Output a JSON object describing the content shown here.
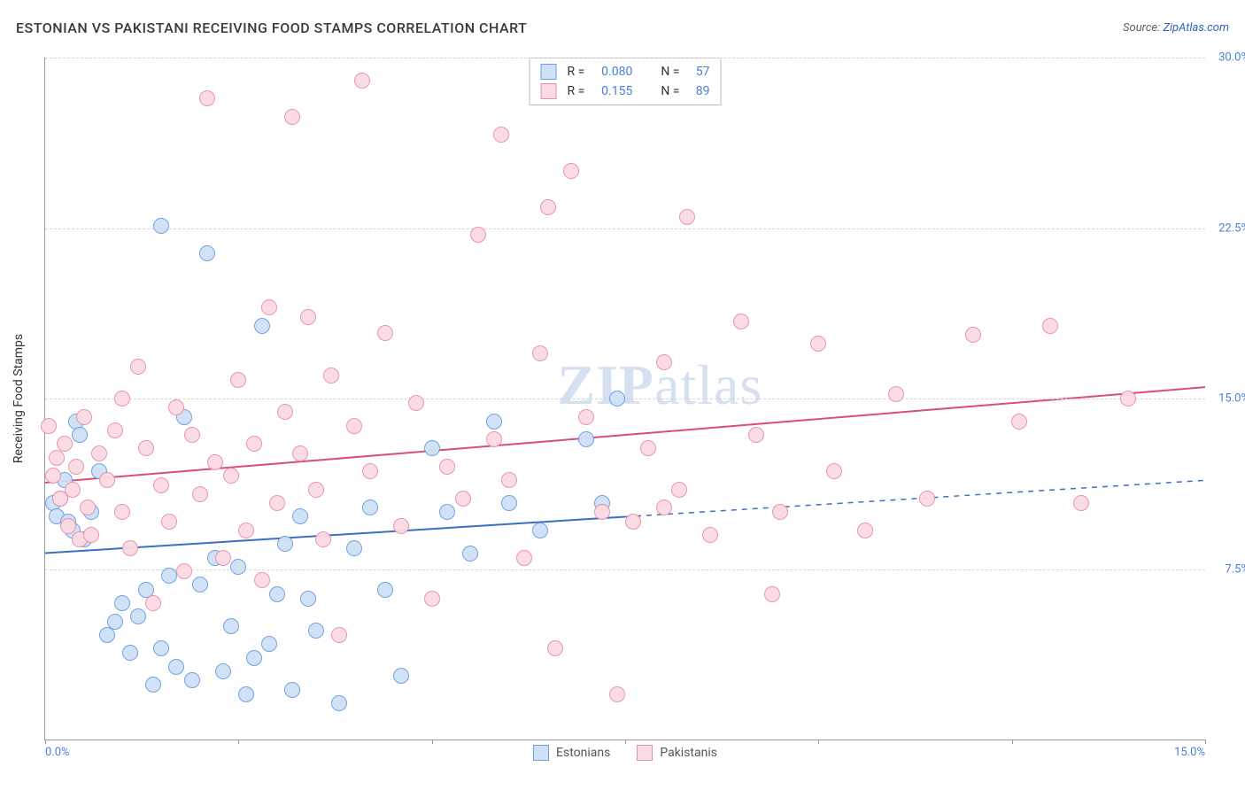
{
  "title": "ESTONIAN VS PAKISTANI RECEIVING FOOD STAMPS CORRELATION CHART",
  "source_prefix": "Source: ",
  "source_name": "ZipAtlas.com",
  "watermark_left": "ZIP",
  "watermark_right": "atlas",
  "chart": {
    "type": "scatter",
    "background_color": "#ffffff",
    "border_color": "#999999",
    "grid_color": "#d5d5d5",
    "grid_dash": "4,4",
    "ylabel": "Receiving Food Stamps",
    "ylabel_fontsize": 14,
    "axis_label_color": "#4a7fd8",
    "title_fontsize": 16,
    "xlim": [
      0,
      15
    ],
    "ylim": [
      0,
      30
    ],
    "xticks": [
      0,
      2.5,
      5,
      7.5,
      10,
      12.5,
      15
    ],
    "xtick_labels": [
      "0.0%",
      "",
      "",
      "",
      "",
      "",
      "15.0%"
    ],
    "yticks": [
      7.5,
      15.0,
      22.5,
      30.0
    ],
    "ytick_labels": [
      "7.5%",
      "15.0%",
      "22.5%",
      "30.0%"
    ],
    "marker_radius": 9,
    "marker_border_width": 1.5,
    "marker_fill_opacity": 0.35
  },
  "series": [
    {
      "key": "estonians",
      "label": "Estonians",
      "fill": "#cfe1f7",
      "stroke": "#6a9fe0",
      "R": "0.080",
      "N": "57",
      "trend": {
        "x1": 0,
        "y1": 8.2,
        "x2": 15,
        "y2": 11.4,
        "solid_until_x": 7.5,
        "color": "#3b6fc4",
        "width": 2
      },
      "points": [
        [
          0.1,
          10.4
        ],
        [
          0.15,
          9.8
        ],
        [
          0.2,
          10.6
        ],
        [
          0.25,
          11.4
        ],
        [
          0.3,
          9.6
        ],
        [
          0.35,
          9.2
        ],
        [
          0.4,
          14.0
        ],
        [
          0.45,
          13.4
        ],
        [
          0.5,
          8.8
        ],
        [
          0.6,
          10.0
        ],
        [
          0.7,
          11.8
        ],
        [
          0.8,
          4.6
        ],
        [
          0.9,
          5.2
        ],
        [
          1.0,
          6.0
        ],
        [
          1.1,
          3.8
        ],
        [
          1.2,
          5.4
        ],
        [
          1.3,
          6.6
        ],
        [
          1.4,
          2.4
        ],
        [
          1.5,
          22.6
        ],
        [
          1.6,
          7.2
        ],
        [
          1.5,
          4.0
        ],
        [
          1.7,
          3.2
        ],
        [
          1.8,
          14.2
        ],
        [
          1.9,
          2.6
        ],
        [
          2.0,
          6.8
        ],
        [
          2.1,
          21.4
        ],
        [
          2.2,
          8.0
        ],
        [
          2.3,
          3.0
        ],
        [
          2.4,
          5.0
        ],
        [
          2.5,
          7.6
        ],
        [
          2.6,
          2.0
        ],
        [
          2.7,
          3.6
        ],
        [
          2.8,
          18.2
        ],
        [
          2.9,
          4.2
        ],
        [
          3.0,
          6.4
        ],
        [
          3.1,
          8.6
        ],
        [
          3.2,
          2.2
        ],
        [
          3.3,
          9.8
        ],
        [
          3.4,
          6.2
        ],
        [
          3.5,
          4.8
        ],
        [
          3.8,
          1.6
        ],
        [
          4.0,
          8.4
        ],
        [
          4.2,
          10.2
        ],
        [
          4.4,
          6.6
        ],
        [
          4.6,
          2.8
        ],
        [
          5.0,
          12.8
        ],
        [
          5.2,
          10.0
        ],
        [
          5.5,
          8.2
        ],
        [
          5.8,
          14.0
        ],
        [
          6.0,
          10.4
        ],
        [
          6.4,
          9.2
        ],
        [
          7.0,
          13.2
        ],
        [
          7.4,
          15.0
        ],
        [
          7.2,
          10.4
        ]
      ]
    },
    {
      "key": "pakistanis",
      "label": "Pakistanis",
      "fill": "#fbdbe3",
      "stroke": "#e890a8",
      "R": "0.155",
      "N": "89",
      "trend": {
        "x1": 0,
        "y1": 11.3,
        "x2": 15,
        "y2": 15.5,
        "solid_until_x": 15,
        "color": "#d94f78",
        "width": 2
      },
      "points": [
        [
          0.05,
          13.8
        ],
        [
          0.1,
          11.6
        ],
        [
          0.15,
          12.4
        ],
        [
          0.2,
          10.6
        ],
        [
          0.25,
          13.0
        ],
        [
          0.3,
          9.4
        ],
        [
          0.35,
          11.0
        ],
        [
          0.4,
          12.0
        ],
        [
          0.45,
          8.8
        ],
        [
          0.5,
          14.2
        ],
        [
          0.55,
          10.2
        ],
        [
          0.6,
          9.0
        ],
        [
          0.7,
          12.6
        ],
        [
          0.8,
          11.4
        ],
        [
          0.9,
          13.6
        ],
        [
          1.0,
          15.0
        ],
        [
          1.0,
          10.0
        ],
        [
          1.1,
          8.4
        ],
        [
          1.2,
          16.4
        ],
        [
          1.3,
          12.8
        ],
        [
          1.4,
          6.0
        ],
        [
          1.5,
          11.2
        ],
        [
          1.6,
          9.6
        ],
        [
          1.7,
          14.6
        ],
        [
          1.8,
          7.4
        ],
        [
          1.9,
          13.4
        ],
        [
          2.0,
          10.8
        ],
        [
          2.1,
          28.2
        ],
        [
          2.2,
          12.2
        ],
        [
          2.3,
          8.0
        ],
        [
          2.4,
          11.6
        ],
        [
          2.5,
          15.8
        ],
        [
          2.6,
          9.2
        ],
        [
          2.7,
          13.0
        ],
        [
          2.8,
          7.0
        ],
        [
          2.9,
          19.0
        ],
        [
          3.0,
          10.4
        ],
        [
          3.1,
          14.4
        ],
        [
          3.2,
          27.4
        ],
        [
          3.3,
          12.6
        ],
        [
          3.4,
          18.6
        ],
        [
          3.5,
          11.0
        ],
        [
          3.6,
          8.8
        ],
        [
          3.7,
          16.0
        ],
        [
          3.8,
          4.6
        ],
        [
          4.0,
          13.8
        ],
        [
          4.1,
          29.0
        ],
        [
          4.2,
          11.8
        ],
        [
          4.4,
          17.9
        ],
        [
          4.6,
          9.4
        ],
        [
          4.8,
          14.8
        ],
        [
          5.0,
          6.2
        ],
        [
          5.2,
          12.0
        ],
        [
          5.4,
          10.6
        ],
        [
          5.6,
          22.2
        ],
        [
          5.8,
          13.2
        ],
        [
          5.9,
          26.6
        ],
        [
          6.0,
          11.4
        ],
        [
          6.2,
          8.0
        ],
        [
          6.4,
          17.0
        ],
        [
          6.5,
          23.4
        ],
        [
          6.6,
          4.0
        ],
        [
          6.8,
          25.0
        ],
        [
          7.0,
          14.2
        ],
        [
          7.2,
          10.0
        ],
        [
          7.4,
          2.0
        ],
        [
          7.6,
          9.6
        ],
        [
          7.8,
          12.8
        ],
        [
          8.0,
          16.6
        ],
        [
          8.0,
          10.2
        ],
        [
          8.2,
          11.0
        ],
        [
          8.3,
          23.0
        ],
        [
          8.6,
          9.0
        ],
        [
          9.0,
          18.4
        ],
        [
          9.2,
          13.4
        ],
        [
          9.4,
          6.4
        ],
        [
          9.5,
          10.0
        ],
        [
          10.0,
          17.4
        ],
        [
          10.2,
          11.8
        ],
        [
          10.6,
          9.2
        ],
        [
          11.0,
          15.2
        ],
        [
          11.4,
          10.6
        ],
        [
          12.0,
          17.8
        ],
        [
          12.6,
          14.0
        ],
        [
          13.0,
          18.2
        ],
        [
          13.4,
          10.4
        ],
        [
          14.0,
          15.0
        ]
      ]
    }
  ],
  "legend_labels": {
    "R": "R =",
    "N": "N ="
  },
  "bottom_legend": [
    {
      "label": "Estonians",
      "fill": "#cfe1f7",
      "stroke": "#6a9fe0"
    },
    {
      "label": "Pakistanis",
      "fill": "#fbdbe3",
      "stroke": "#e890a8"
    }
  ]
}
